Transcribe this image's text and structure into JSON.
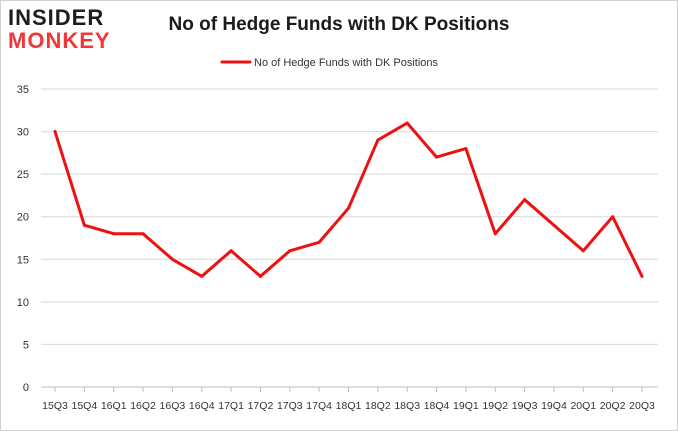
{
  "logo": {
    "line1": "INSIDER",
    "line2": "MONKEY"
  },
  "colors": {
    "line": "#ee1111",
    "grid": "#d9d9d9",
    "text": "#333333",
    "logo_accent": "#f0383a"
  },
  "chart_data": {
    "type": "line",
    "title": "No of Hedge Funds with DK Positions",
    "legend_position": "top-center",
    "grid": true,
    "ylim": [
      0,
      35
    ],
    "yticks": [
      0,
      5,
      10,
      15,
      20,
      25,
      30,
      35
    ],
    "categories": [
      "2015Q3",
      "2015Q4",
      "2016Q1",
      "2016Q2",
      "2016Q3",
      "2016Q4",
      "2017Q1",
      "2017Q2",
      "2017Q3",
      "2017Q4",
      "2018Q1",
      "2018Q2",
      "2018Q3",
      "2018Q4",
      "2019Q1",
      "2019Q2",
      "2019Q3",
      "2019Q4",
      "2020Q1",
      "2020Q2",
      "2020Q3"
    ],
    "xtick_labels": [
      "15Q3",
      "15Q4",
      "16Q1",
      "16Q2",
      "16Q3",
      "16Q4",
      "17Q1",
      "17Q2",
      "17Q3",
      "17Q4",
      "18Q1",
      "18Q2",
      "18Q3",
      "18Q4",
      "19Q1",
      "19Q2",
      "19Q3",
      "19Q4",
      "20Q1",
      "20Q2",
      "20Q3"
    ],
    "series": [
      {
        "name": "No of Hedge Funds with DK Positions",
        "values": [
          30,
          19,
          18,
          18,
          15,
          13,
          16,
          13,
          16,
          17,
          21,
          29,
          31,
          27,
          28,
          18,
          22,
          19,
          16,
          20,
          13
        ]
      }
    ]
  }
}
